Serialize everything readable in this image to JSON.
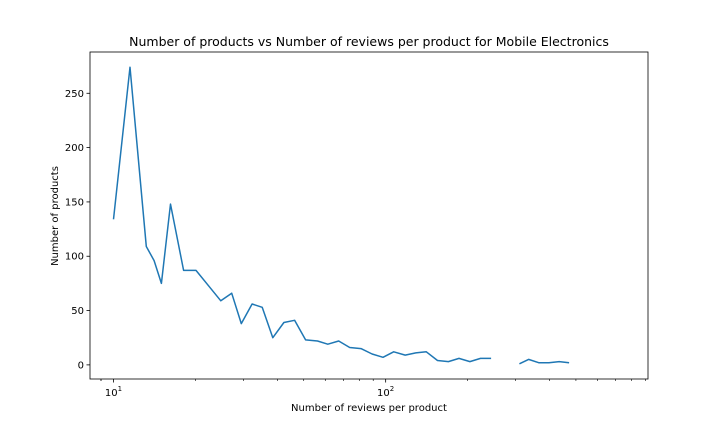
{
  "chart_data": {
    "type": "line",
    "title": "Number of products vs Number of reviews per product for  Mobile Electronics",
    "xlabel": "Number of reviews per product",
    "ylabel": "Number of products",
    "xscale": "log",
    "xlim": [
      8.2,
      920
    ],
    "ylim": [
      -13,
      288
    ],
    "grid": false,
    "legend": "none",
    "line_color": "#1f77b4",
    "y_ticks": [
      0,
      50,
      100,
      150,
      200,
      250
    ],
    "x_ticks": [
      {
        "value": 10,
        "base": "10",
        "exp": "1"
      },
      {
        "value": 100,
        "base": "10",
        "exp": "2"
      }
    ],
    "series": [
      {
        "segments": [
          {
            "x": [
              10,
              11.5,
              13.2,
              14.1,
              15,
              16.2,
              18.1,
              20.1,
              22.5,
              24.8,
              27.2,
              29.5,
              32.3,
              35.2,
              38.5,
              42.3,
              46.3,
              50.8,
              56.2,
              61.3,
              67.2,
              73.8,
              81.2,
              89.2,
              97.8,
              107,
              118,
              129,
              141,
              155,
              170,
              186,
              204,
              223,
              244
            ],
            "y": [
              134,
              274,
              109,
              96,
              75,
              148,
              87,
              87,
              72,
              59,
              66,
              38,
              56,
              53,
              25,
              39,
              41,
              23,
              22,
              19,
              22,
              16,
              15,
              10,
              7,
              12,
              9,
              11,
              12,
              4,
              3,
              6,
              3,
              6,
              6
            ]
          },
          {
            "x": [
              310,
              335,
              365,
              398,
              434,
              472
            ],
            "y": [
              1,
              5,
              2,
              2,
              3,
              2
            ]
          }
        ]
      }
    ]
  }
}
